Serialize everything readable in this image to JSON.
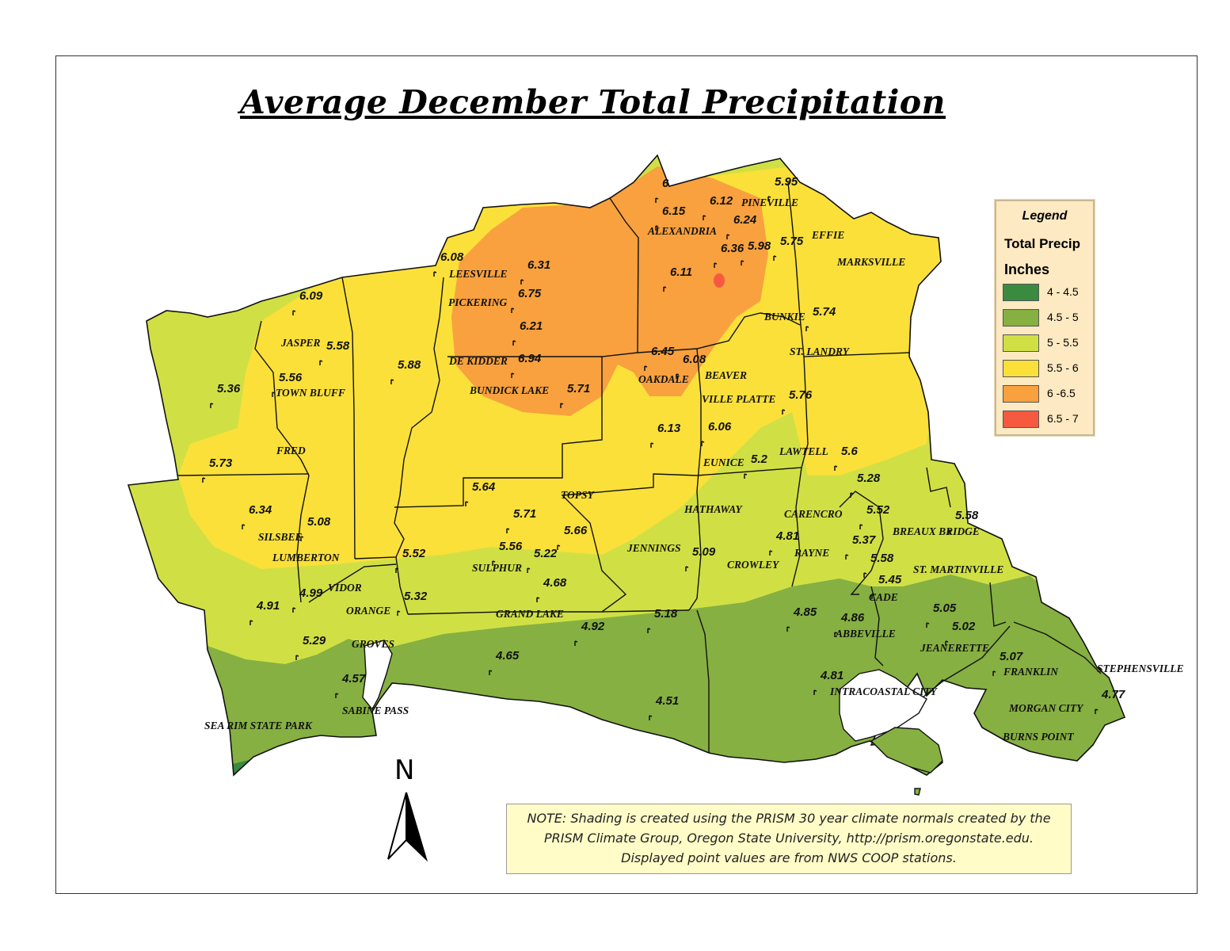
{
  "title": "Average December Total Precipitation",
  "legend": {
    "heading": "Legend",
    "field": "Total Precip",
    "unit": "Inches",
    "classes": [
      {
        "label": "4 - 4.5",
        "color": "#3a8a3f"
      },
      {
        "label": "4.5 - 5",
        "color": "#86b042"
      },
      {
        "label": "5 - 5.5",
        "color": "#d0e044"
      },
      {
        "label": "5.5 - 6",
        "color": "#fbe03a"
      },
      {
        "label": "6 -6.5",
        "color": "#f8a13e"
      },
      {
        "label": "6.5 - 7",
        "color": "#f55a41"
      }
    ]
  },
  "north_arrow": {
    "label": "N"
  },
  "note": {
    "line1": "NOTE: Shading is created using the PRISM 30 year climate normals created by the",
    "line2": "PRISM Climate Group, Oregon State University, http://prism.oregonstate.edu.",
    "line3": "Displayed point values are from NWS COOP stations."
  },
  "places": [
    "PINEVILLE",
    "ALEXANDRIA",
    "EFFIE",
    "MARKSVILLE",
    "LEESVILLE",
    "PICKERING",
    "BUNKIE",
    "JASPER",
    "ST. LANDRY",
    "DE KIDDER",
    "BEAVER",
    "OAKDALE",
    "TOWN BLUFF",
    "BUNDICK LAKE",
    "VILLE PLATTE",
    "FRED",
    "EUNICE",
    "LAWTELL",
    "TOPSY",
    "HATHAWAY",
    "CARENCRO",
    "BREAUX BRIDGE",
    "SILSBEE",
    "JENNINGS",
    "RAYNE",
    "LUMBERTON",
    "SULPHUR",
    "CROWLEY",
    "ST. MARTINVILLE",
    "VIDOR",
    "CADE",
    "ORANGE",
    "GRAND LAKE",
    "ABBEVILLE",
    "GROVES",
    "JEANERETTE",
    "FRANKLIN",
    "STEPHENSVILLE",
    "INTRACOASTAL CITY",
    "SABINE PASS",
    "MORGAN CITY",
    "SEA RIM STATE PARK",
    "BURNS POINT"
  ],
  "stations": [
    "6",
    "5.95",
    "6.12",
    "6.15",
    "6.24",
    "5.98",
    "6.36",
    "5.75",
    "6.08",
    "6.31",
    "6.11",
    "6.75",
    "6.09",
    "5.74",
    "6.21",
    "5.58",
    "6.45",
    "6.08",
    "6.94",
    "5.88",
    "5.56",
    "5.71",
    "5.36",
    "5.76",
    "6.13",
    "6.06",
    "5.6",
    "5.2",
    "5.73",
    "5.28",
    "5.64",
    "5.52",
    "5.58",
    "6.34",
    "5.71",
    "5.08",
    "5.66",
    "5.37",
    "4.81",
    "5.56",
    "5.22",
    "5.09",
    "5.58",
    "5.52",
    "5.45",
    "4.68",
    "4.99",
    "5.32",
    "5.05",
    "4.91",
    "5.02",
    "4.85",
    "4.86",
    "5.18",
    "4.92",
    "5.29",
    "5.07",
    "4.65",
    "4.57",
    "4.81",
    "4.77",
    "4.51"
  ]
}
